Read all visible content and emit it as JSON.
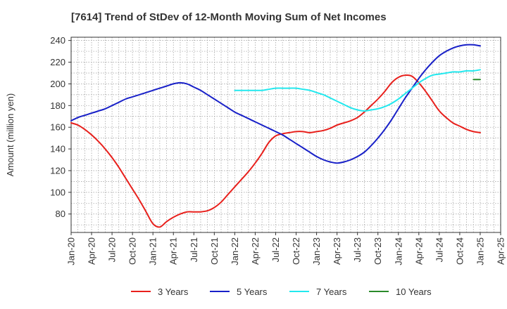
{
  "chart_data": {
    "type": "line",
    "title": "[7614]  Trend of StDev of 12-Month Moving Sum of Net Incomes",
    "xlabel": "",
    "ylabel": "Amount (million yen)",
    "xlim": [
      "2020-01",
      "2025-04"
    ],
    "ylim": [
      63,
      243
    ],
    "x_ticks": [
      "Jan-20",
      "Apr-20",
      "Jul-20",
      "Oct-20",
      "Jan-21",
      "Apr-21",
      "Jul-21",
      "Oct-21",
      "Jan-22",
      "Apr-22",
      "Jul-22",
      "Oct-22",
      "Jan-23",
      "Apr-23",
      "Jul-23",
      "Oct-23",
      "Jan-24",
      "Apr-24",
      "Jul-24",
      "Oct-24",
      "Jan-25",
      "Apr-25"
    ],
    "y_ticks": [
      80,
      100,
      120,
      140,
      160,
      180,
      200,
      220,
      240
    ],
    "grid": true,
    "legend_position": "bottom",
    "series": [
      {
        "name": "3 Years",
        "color": "#e8201c",
        "points": [
          [
            "2020-01",
            164
          ],
          [
            "2020-02",
            162
          ],
          [
            "2020-03",
            158
          ],
          [
            "2020-04",
            153
          ],
          [
            "2020-05",
            147
          ],
          [
            "2020-06",
            140
          ],
          [
            "2020-07",
            132
          ],
          [
            "2020-08",
            123
          ],
          [
            "2020-09",
            113
          ],
          [
            "2020-10",
            103
          ],
          [
            "2020-11",
            93
          ],
          [
            "2020-12",
            82
          ],
          [
            "2021-01",
            71
          ],
          [
            "2021-02",
            68
          ],
          [
            "2021-03",
            73
          ],
          [
            "2021-04",
            77
          ],
          [
            "2021-05",
            80
          ],
          [
            "2021-06",
            82
          ],
          [
            "2021-07",
            82
          ],
          [
            "2021-08",
            82
          ],
          [
            "2021-09",
            83
          ],
          [
            "2021-10",
            86
          ],
          [
            "2021-11",
            91
          ],
          [
            "2021-12",
            98
          ],
          [
            "2022-01",
            105
          ],
          [
            "2022-02",
            112
          ],
          [
            "2022-03",
            119
          ],
          [
            "2022-04",
            127
          ],
          [
            "2022-05",
            136
          ],
          [
            "2022-06",
            146
          ],
          [
            "2022-07",
            152
          ],
          [
            "2022-08",
            154
          ],
          [
            "2022-09",
            155
          ],
          [
            "2022-10",
            156
          ],
          [
            "2022-11",
            156
          ],
          [
            "2022-12",
            155
          ],
          [
            "2023-01",
            156
          ],
          [
            "2023-02",
            157
          ],
          [
            "2023-03",
            159
          ],
          [
            "2023-04",
            162
          ],
          [
            "2023-05",
            164
          ],
          [
            "2023-06",
            166
          ],
          [
            "2023-07",
            169
          ],
          [
            "2023-08",
            174
          ],
          [
            "2023-09",
            180
          ],
          [
            "2023-10",
            186
          ],
          [
            "2023-11",
            193
          ],
          [
            "2023-12",
            201
          ],
          [
            "2024-01",
            206
          ],
          [
            "2024-02",
            208
          ],
          [
            "2024-03",
            207
          ],
          [
            "2024-04",
            201
          ],
          [
            "2024-05",
            193
          ],
          [
            "2024-06",
            184
          ],
          [
            "2024-07",
            175
          ],
          [
            "2024-08",
            169
          ],
          [
            "2024-09",
            164
          ],
          [
            "2024-10",
            161
          ],
          [
            "2024-11",
            158
          ],
          [
            "2024-12",
            156
          ],
          [
            "2025-01",
            155
          ]
        ]
      },
      {
        "name": "5 Years",
        "color": "#1820c8",
        "points": [
          [
            "2020-01",
            166
          ],
          [
            "2020-02",
            169
          ],
          [
            "2020-03",
            171
          ],
          [
            "2020-04",
            173
          ],
          [
            "2020-05",
            175
          ],
          [
            "2020-06",
            177
          ],
          [
            "2020-07",
            180
          ],
          [
            "2020-08",
            183
          ],
          [
            "2020-09",
            186
          ],
          [
            "2020-10",
            188
          ],
          [
            "2020-11",
            190
          ],
          [
            "2020-12",
            192
          ],
          [
            "2021-01",
            194
          ],
          [
            "2021-02",
            196
          ],
          [
            "2021-03",
            198
          ],
          [
            "2021-04",
            200
          ],
          [
            "2021-05",
            201
          ],
          [
            "2021-06",
            200
          ],
          [
            "2021-07",
            197
          ],
          [
            "2021-08",
            194
          ],
          [
            "2021-09",
            190
          ],
          [
            "2021-10",
            186
          ],
          [
            "2021-11",
            182
          ],
          [
            "2021-12",
            178
          ],
          [
            "2022-01",
            174
          ],
          [
            "2022-02",
            171
          ],
          [
            "2022-03",
            168
          ],
          [
            "2022-04",
            165
          ],
          [
            "2022-05",
            162
          ],
          [
            "2022-06",
            159
          ],
          [
            "2022-07",
            156
          ],
          [
            "2022-08",
            153
          ],
          [
            "2022-09",
            149
          ],
          [
            "2022-10",
            145
          ],
          [
            "2022-11",
            141
          ],
          [
            "2022-12",
            137
          ],
          [
            "2023-01",
            133
          ],
          [
            "2023-02",
            130
          ],
          [
            "2023-03",
            128
          ],
          [
            "2023-04",
            127
          ],
          [
            "2023-05",
            128
          ],
          [
            "2023-06",
            130
          ],
          [
            "2023-07",
            133
          ],
          [
            "2023-08",
            137
          ],
          [
            "2023-09",
            143
          ],
          [
            "2023-10",
            150
          ],
          [
            "2023-11",
            158
          ],
          [
            "2023-12",
            167
          ],
          [
            "2024-01",
            177
          ],
          [
            "2024-02",
            187
          ],
          [
            "2024-03",
            196
          ],
          [
            "2024-04",
            205
          ],
          [
            "2024-05",
            213
          ],
          [
            "2024-06",
            220
          ],
          [
            "2024-07",
            226
          ],
          [
            "2024-08",
            230
          ],
          [
            "2024-09",
            233
          ],
          [
            "2024-10",
            235
          ],
          [
            "2024-11",
            236
          ],
          [
            "2024-12",
            236
          ],
          [
            "2025-01",
            235
          ]
        ]
      },
      {
        "name": "7 Years",
        "color": "#22e8ee",
        "points": [
          [
            "2022-01",
            194
          ],
          [
            "2022-02",
            194
          ],
          [
            "2022-03",
            194
          ],
          [
            "2022-04",
            194
          ],
          [
            "2022-05",
            194
          ],
          [
            "2022-06",
            195
          ],
          [
            "2022-07",
            196
          ],
          [
            "2022-08",
            196
          ],
          [
            "2022-09",
            196
          ],
          [
            "2022-10",
            196
          ],
          [
            "2022-11",
            195
          ],
          [
            "2022-12",
            194
          ],
          [
            "2023-01",
            192
          ],
          [
            "2023-02",
            190
          ],
          [
            "2023-03",
            187
          ],
          [
            "2023-04",
            184
          ],
          [
            "2023-05",
            181
          ],
          [
            "2023-06",
            178
          ],
          [
            "2023-07",
            176
          ],
          [
            "2023-08",
            175
          ],
          [
            "2023-09",
            176
          ],
          [
            "2023-10",
            177
          ],
          [
            "2023-11",
            179
          ],
          [
            "2023-12",
            182
          ],
          [
            "2024-01",
            186
          ],
          [
            "2024-02",
            191
          ],
          [
            "2024-03",
            196
          ],
          [
            "2024-04",
            201
          ],
          [
            "2024-05",
            205
          ],
          [
            "2024-06",
            208
          ],
          [
            "2024-07",
            209
          ],
          [
            "2024-08",
            210
          ],
          [
            "2024-09",
            211
          ],
          [
            "2024-10",
            211
          ],
          [
            "2024-11",
            212
          ],
          [
            "2024-12",
            212
          ],
          [
            "2025-01",
            213
          ]
        ]
      },
      {
        "name": "10 Years",
        "color": "#2a8a2a",
        "points": [
          [
            "2024-12",
            204
          ],
          [
            "2025-01",
            204
          ]
        ]
      }
    ]
  }
}
